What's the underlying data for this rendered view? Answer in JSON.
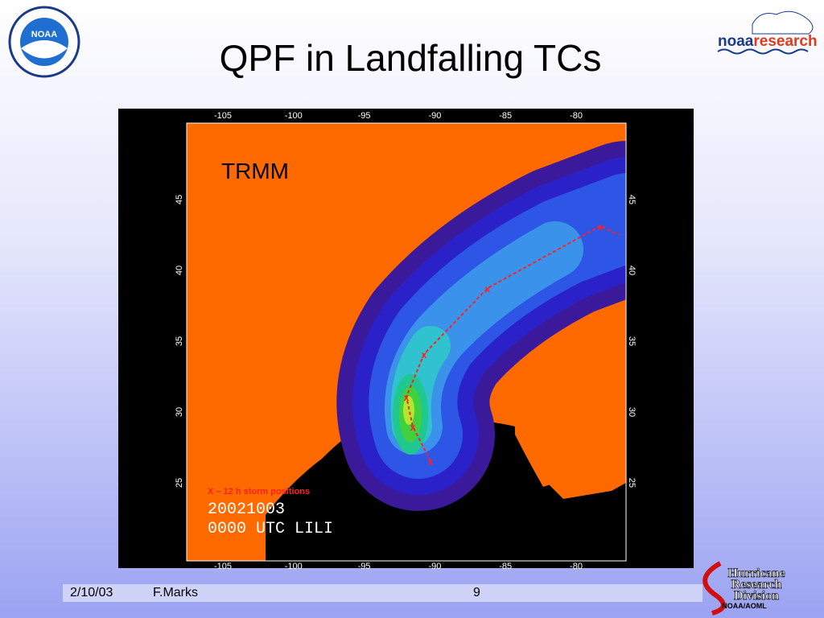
{
  "header": {
    "title": "QPF in Landfalling TCs",
    "noaa_logo": "NOAA",
    "research_logo": {
      "noaa": "noaa",
      "research": "research"
    }
  },
  "map": {
    "label": "TRMM",
    "legend": "X – 12 h storm positions",
    "date": "20021003",
    "time": "0000 UTC LILI",
    "lon_labels": [
      "-105",
      "-100",
      "-95",
      "-90",
      "-85",
      "-80"
    ],
    "lat_labels": [
      "45",
      "40",
      "35",
      "30",
      "25"
    ]
  },
  "hrd_logo": {
    "lines": [
      "Hurricane",
      "Research",
      "Division"
    ],
    "org": "NOAA/AOML"
  },
  "footer": {
    "date": "2/10/03",
    "author": "F.Marks",
    "page": "9"
  }
}
